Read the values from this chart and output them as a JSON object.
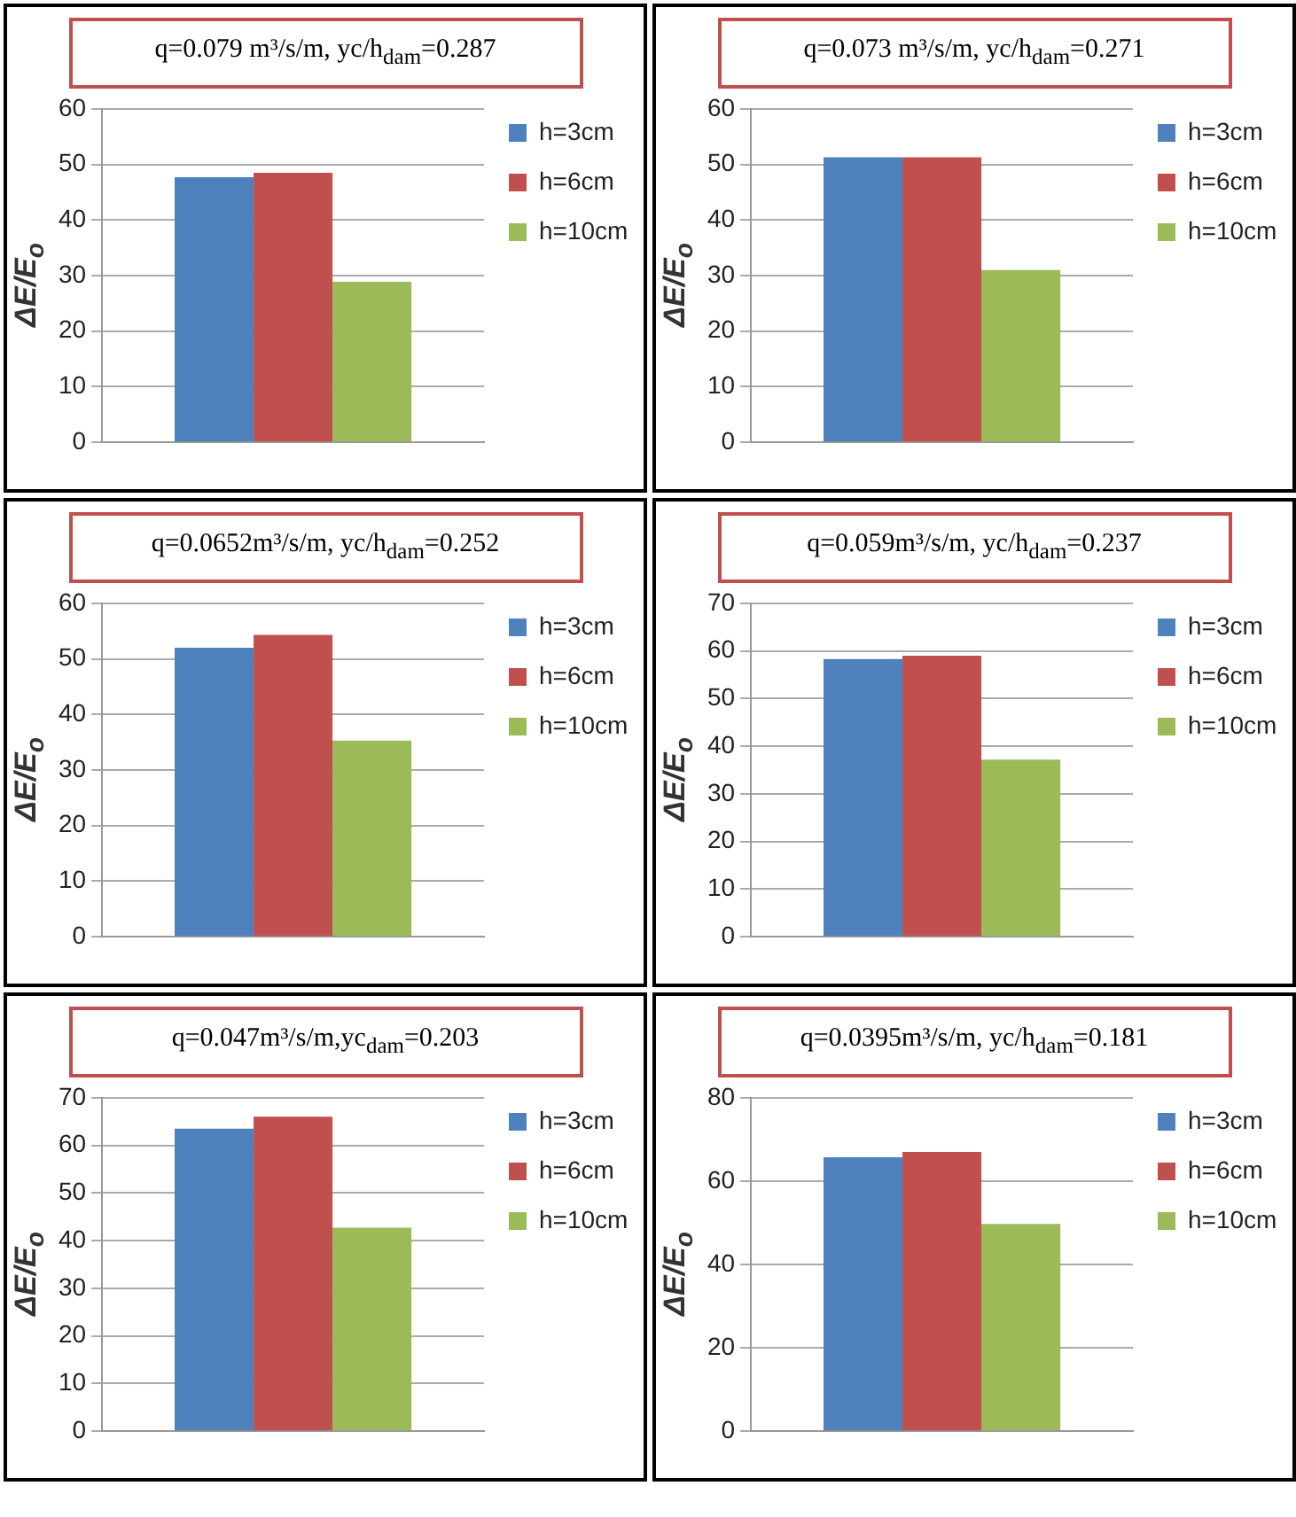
{
  "chart_data": [
    {
      "type": "bar",
      "title": "q=0.079 m³/s/m, yc/h$_{dam}$=0.287",
      "ylabel": "ΔE/E$_{o}$",
      "categories": [
        null
      ],
      "series": [
        {
          "name": "h=3cm",
          "color": "#4f81bd",
          "values": [
            47.7
          ]
        },
        {
          "name": "h=6cm",
          "color": "#c0504d",
          "values": [
            48.5
          ]
        },
        {
          "name": "h=10cm",
          "color": "#9bbb59",
          "values": [
            28.9
          ]
        }
      ],
      "ylim": [
        0,
        60
      ],
      "yticks": [
        0,
        10,
        20,
        30,
        40,
        50,
        60
      ],
      "grid": "y",
      "legend": "top right"
    },
    {
      "type": "bar",
      "title": "q=0.073 m³/s/m, yc/h$_{dam}$=0.271",
      "ylabel": "ΔE/E$_{o}$",
      "categories": [
        null
      ],
      "series": [
        {
          "name": "h=3cm",
          "color": "#4f81bd",
          "values": [
            51.3
          ]
        },
        {
          "name": "h=6cm",
          "color": "#c0504d",
          "values": [
            51.3
          ]
        },
        {
          "name": "h=10cm",
          "color": "#9bbb59",
          "values": [
            31
          ]
        }
      ],
      "ylim": [
        0,
        60
      ],
      "yticks": [
        0,
        10,
        20,
        30,
        40,
        50,
        60
      ],
      "grid": "y",
      "legend": "top right"
    },
    {
      "type": "bar",
      "title": "q=0.0652m³/s/m, yc/h$_{dam}$=0.252",
      "ylabel": "ΔE/E$_{o}$",
      "categories": [
        null
      ],
      "series": [
        {
          "name": "h=3cm",
          "color": "#4f81bd",
          "values": [
            52
          ]
        },
        {
          "name": "h=6cm",
          "color": "#c0504d",
          "values": [
            54.3
          ]
        },
        {
          "name": "h=10cm",
          "color": "#9bbb59",
          "values": [
            35.3
          ]
        }
      ],
      "ylim": [
        0,
        60
      ],
      "yticks": [
        0,
        10,
        20,
        30,
        40,
        50,
        60
      ],
      "grid": "y",
      "legend": "top right"
    },
    {
      "type": "bar",
      "title": "q=0.059m³/s/m, yc/h$_{dam}$=0.237",
      "ylabel": "ΔE/E$_{o}$",
      "categories": [
        null
      ],
      "series": [
        {
          "name": "h=3cm",
          "color": "#4f81bd",
          "values": [
            58.3
          ]
        },
        {
          "name": "h=6cm",
          "color": "#c0504d",
          "values": [
            59
          ]
        },
        {
          "name": "h=10cm",
          "color": "#9bbb59",
          "values": [
            37.2
          ]
        }
      ],
      "ylim": [
        0,
        70
      ],
      "yticks": [
        0,
        10,
        20,
        30,
        40,
        50,
        60,
        70
      ],
      "grid": "y",
      "legend": "top right"
    },
    {
      "type": "bar",
      "title": "q=0.047m³/s/m,yc$_{dam}$=0.203",
      "ylabel": "ΔE/E$_{o}$",
      "categories": [
        null
      ],
      "series": [
        {
          "name": "h=3cm",
          "color": "#4f81bd",
          "values": [
            63.5
          ]
        },
        {
          "name": "h=6cm",
          "color": "#c0504d",
          "values": [
            66
          ]
        },
        {
          "name": "h=10cm",
          "color": "#9bbb59",
          "values": [
            42.7
          ]
        }
      ],
      "ylim": [
        0,
        70
      ],
      "yticks": [
        0,
        10,
        20,
        30,
        40,
        50,
        60,
        70
      ],
      "grid": "y",
      "legend": "top right"
    },
    {
      "type": "bar",
      "title": "q=0.0395m³/s/m, yc/h$_{dam}$=0.181",
      "ylabel": "ΔE/E$_{o}$",
      "categories": [
        null
      ],
      "series": [
        {
          "name": "h=3cm",
          "color": "#4f81bd",
          "values": [
            65.7
          ]
        },
        {
          "name": "h=6cm",
          "color": "#c0504d",
          "values": [
            67
          ]
        },
        {
          "name": "h=10cm",
          "color": "#9bbb59",
          "values": [
            49.7
          ]
        }
      ],
      "ylim": [
        0,
        80
      ],
      "yticks": [
        0,
        20,
        40,
        60,
        80
      ],
      "grid": "y",
      "legend": "top right"
    }
  ]
}
